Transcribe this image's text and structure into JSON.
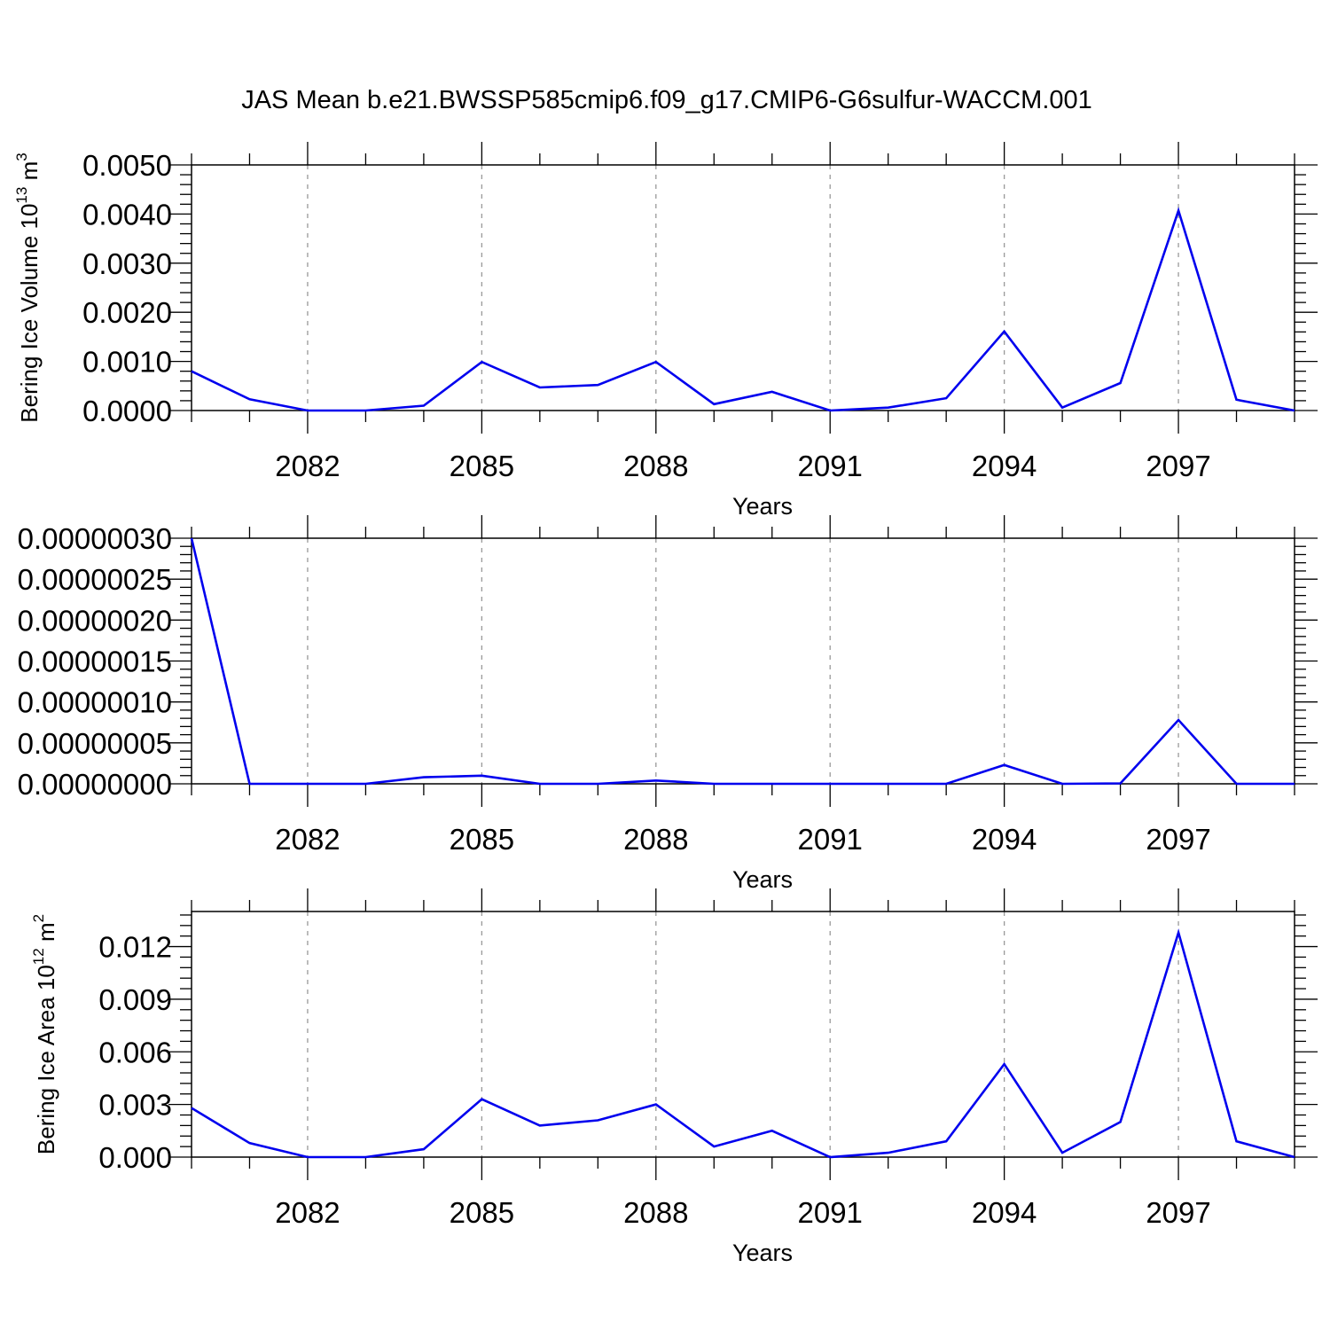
{
  "title": "JAS Mean b.e21.BWSSP585cmip6.f09_g17.CMIP6-G6sulfur-WACCM.001",
  "colors": {
    "line": "#0000ee",
    "grid": "#999999",
    "frame": "#000000"
  },
  "chart_data": [
    {
      "type": "line",
      "ylabel": {
        "text": "Bering Ice Volume 10",
        "exp": "13",
        "unit": " m",
        "unit_exp": "3"
      },
      "xlabel": "Years",
      "xlim": [
        2080,
        2099
      ],
      "x_ticks": [
        2082,
        2085,
        2088,
        2091,
        2094,
        2097
      ],
      "x_tick_labels": [
        "2082",
        "2085",
        "2088",
        "2091",
        "2094",
        "2097"
      ],
      "ylim": [
        0,
        0.005
      ],
      "y_ticks": [
        0,
        0.001,
        0.002,
        0.003,
        0.004,
        0.005
      ],
      "y_tick_labels": [
        "0.0000",
        "0.0010",
        "0.0020",
        "0.0030",
        "0.0040",
        "0.0050"
      ],
      "grid": "vertical dashed at major x ticks",
      "x": [
        2080,
        2081,
        2082,
        2083,
        2084,
        2085,
        2086,
        2087,
        2088,
        2089,
        2090,
        2091,
        2092,
        2093,
        2094,
        2095,
        2096,
        2097,
        2098,
        2099
      ],
      "values": [
        0.0008,
        0.00023,
        0.0,
        0.0,
        0.0001,
        0.00099,
        0.00047,
        0.00052,
        0.00099,
        0.00013,
        0.00038,
        0.0,
        6e-05,
        0.00025,
        0.00161,
        6e-05,
        0.00056,
        0.00407,
        0.00022,
        0.0
      ]
    },
    {
      "type": "line",
      "ylabel": null,
      "xlabel": "Years",
      "xlim": [
        2080,
        2099
      ],
      "x_ticks": [
        2082,
        2085,
        2088,
        2091,
        2094,
        2097
      ],
      "x_tick_labels": [
        "2082",
        "2085",
        "2088",
        "2091",
        "2094",
        "2097"
      ],
      "ylim": [
        0,
        3e-07
      ],
      "y_ticks": [
        0,
        5e-08,
        1e-07,
        1.5e-07,
        2e-07,
        2.5e-07,
        3e-07
      ],
      "y_tick_labels": [
        "0.00000000",
        "0.00000005",
        "0.00000010",
        "0.00000015",
        "0.00000020",
        "0.00000025",
        "0.00000030"
      ],
      "grid": "vertical dashed at major x ticks",
      "x": [
        2080,
        2081,
        2082,
        2083,
        2084,
        2085,
        2086,
        2087,
        2088,
        2089,
        2090,
        2091,
        2092,
        2093,
        2094,
        2095,
        2096,
        2097,
        2098,
        2099
      ],
      "values": [
        3e-07,
        0,
        0,
        0,
        8e-09,
        1e-08,
        0,
        0,
        4e-09,
        0,
        0,
        0,
        0,
        0,
        2.3e-08,
        0,
        5e-10,
        7.8e-08,
        0,
        0
      ]
    },
    {
      "type": "line",
      "ylabel": {
        "text": "Bering Ice Area 10",
        "exp": "12",
        "unit": " m",
        "unit_exp": "2"
      },
      "xlabel": "Years",
      "xlim": [
        2080,
        2099
      ],
      "x_ticks": [
        2082,
        2085,
        2088,
        2091,
        2094,
        2097
      ],
      "x_tick_labels": [
        "2082",
        "2085",
        "2088",
        "2091",
        "2094",
        "2097"
      ],
      "ylim": [
        0,
        0.014
      ],
      "y_ticks": [
        0,
        0.003,
        0.006,
        0.009,
        0.012
      ],
      "y_tick_labels": [
        "0.000",
        "0.003",
        "0.006",
        "0.009",
        "0.012"
      ],
      "grid": "vertical dashed at major x ticks",
      "x": [
        2080,
        2081,
        2082,
        2083,
        2084,
        2085,
        2086,
        2087,
        2088,
        2089,
        2090,
        2091,
        2092,
        2093,
        2094,
        2095,
        2096,
        2097,
        2098,
        2099
      ],
      "values": [
        0.0028,
        0.0008,
        0.0,
        0.0,
        0.00045,
        0.0033,
        0.0018,
        0.0021,
        0.003,
        0.0006,
        0.0015,
        0.0,
        0.00025,
        0.0009,
        0.0053,
        0.00025,
        0.002,
        0.0128,
        0.0009,
        0.0
      ]
    }
  ]
}
